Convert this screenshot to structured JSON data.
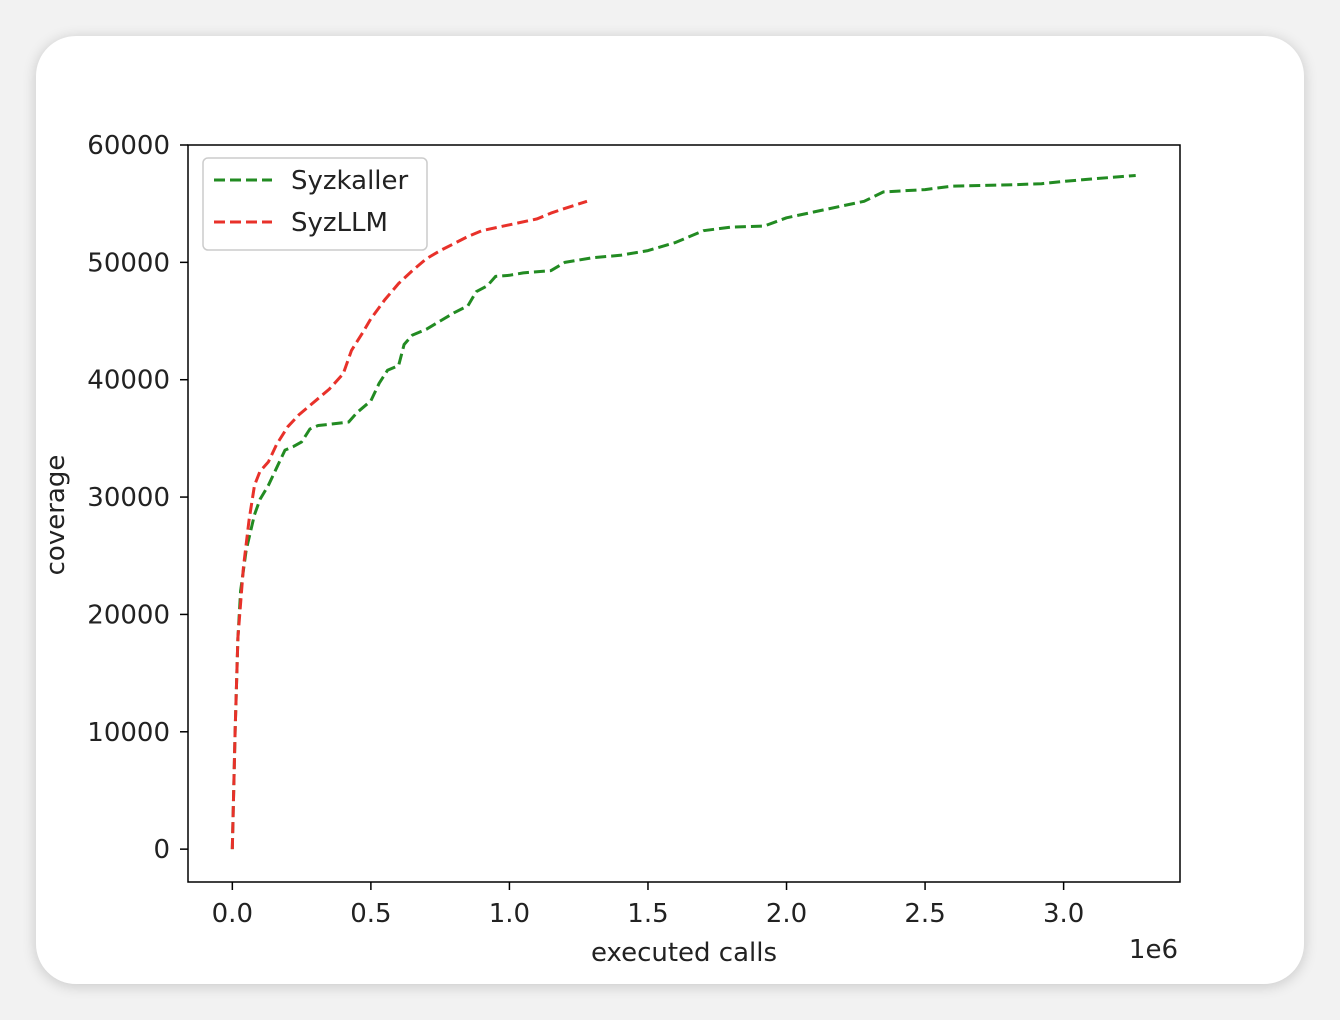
{
  "chart_data": {
    "type": "line",
    "xlabel": "executed calls",
    "ylabel": "coverage",
    "x_offset_label": "1e6",
    "xlim": [
      -0.16,
      3.42
    ],
    "ylim": [
      -2800,
      60000
    ],
    "x_ticks": [
      0.0,
      0.5,
      1.0,
      1.5,
      2.0,
      2.5,
      3.0
    ],
    "x_tick_labels": [
      "0.0",
      "0.5",
      "1.0",
      "1.5",
      "2.0",
      "2.5",
      "3.0"
    ],
    "y_ticks": [
      0,
      10000,
      20000,
      30000,
      40000,
      50000,
      60000
    ],
    "y_tick_labels": [
      "0",
      "10000",
      "20000",
      "30000",
      "40000",
      "50000",
      "60000"
    ],
    "grid": false,
    "legend_position": "top-left",
    "line_style": "dashed",
    "series": [
      {
        "name": "Syzkaller",
        "color": "#228b22",
        "points": [
          [
            0,
            0
          ],
          [
            0.01,
            10000
          ],
          [
            0.02,
            18000
          ],
          [
            0.03,
            22000
          ],
          [
            0.05,
            25500
          ],
          [
            0.08,
            28500
          ],
          [
            0.1,
            29800
          ],
          [
            0.13,
            31000
          ],
          [
            0.16,
            32500
          ],
          [
            0.19,
            34000
          ],
          [
            0.22,
            34300
          ],
          [
            0.25,
            34700
          ],
          [
            0.28,
            35800
          ],
          [
            0.31,
            36100
          ],
          [
            0.35,
            36200
          ],
          [
            0.42,
            36400
          ],
          [
            0.45,
            37200
          ],
          [
            0.5,
            38200
          ],
          [
            0.53,
            39700
          ],
          [
            0.56,
            40800
          ],
          [
            0.6,
            41200
          ],
          [
            0.62,
            43000
          ],
          [
            0.65,
            43800
          ],
          [
            0.7,
            44300
          ],
          [
            0.75,
            45000
          ],
          [
            0.8,
            45700
          ],
          [
            0.85,
            46300
          ],
          [
            0.88,
            47500
          ],
          [
            0.92,
            48000
          ],
          [
            0.95,
            48800
          ],
          [
            1.0,
            48900
          ],
          [
            1.05,
            49100
          ],
          [
            1.15,
            49300
          ],
          [
            1.2,
            50000
          ],
          [
            1.3,
            50400
          ],
          [
            1.4,
            50600
          ],
          [
            1.5,
            51000
          ],
          [
            1.6,
            51700
          ],
          [
            1.7,
            52700
          ],
          [
            1.8,
            53000
          ],
          [
            1.92,
            53100
          ],
          [
            2.0,
            53800
          ],
          [
            2.1,
            54300
          ],
          [
            2.2,
            54800
          ],
          [
            2.28,
            55200
          ],
          [
            2.35,
            56000
          ],
          [
            2.5,
            56200
          ],
          [
            2.6,
            56500
          ],
          [
            2.8,
            56600
          ],
          [
            2.92,
            56700
          ],
          [
            3.0,
            56900
          ],
          [
            3.1,
            57100
          ],
          [
            3.26,
            57400
          ]
        ]
      },
      {
        "name": "SyzLLM",
        "color": "#e8312a",
        "points": [
          [
            0,
            0
          ],
          [
            0.01,
            10000
          ],
          [
            0.02,
            18000
          ],
          [
            0.04,
            24000
          ],
          [
            0.06,
            28000
          ],
          [
            0.08,
            31000
          ],
          [
            0.1,
            32200
          ],
          [
            0.13,
            33000
          ],
          [
            0.16,
            34500
          ],
          [
            0.2,
            36000
          ],
          [
            0.24,
            37000
          ],
          [
            0.3,
            38200
          ],
          [
            0.35,
            39200
          ],
          [
            0.4,
            40500
          ],
          [
            0.43,
            42500
          ],
          [
            0.47,
            44000
          ],
          [
            0.5,
            45200
          ],
          [
            0.55,
            46800
          ],
          [
            0.6,
            48200
          ],
          [
            0.65,
            49300
          ],
          [
            0.7,
            50300
          ],
          [
            0.75,
            51000
          ],
          [
            0.8,
            51600
          ],
          [
            0.85,
            52200
          ],
          [
            0.9,
            52700
          ],
          [
            1.0,
            53200
          ],
          [
            1.1,
            53700
          ],
          [
            1.15,
            54200
          ],
          [
            1.2,
            54600
          ],
          [
            1.28,
            55200
          ]
        ]
      }
    ]
  }
}
